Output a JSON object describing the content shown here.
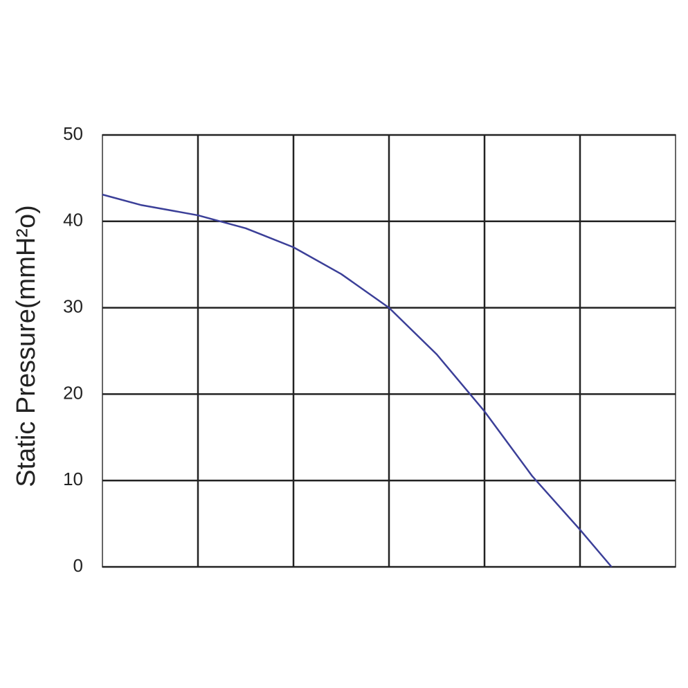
{
  "chart_data": {
    "type": "line",
    "y_label": "Static Pressure(mmH²o)",
    "x": [
      0,
      0.4,
      1,
      1.5,
      2,
      2.5,
      3,
      3.5,
      4,
      4.5,
      5,
      5.33
    ],
    "series": [
      {
        "name": "Static Pressure",
        "color": "#3b3f98",
        "values": [
          43.1,
          41.9,
          40.7,
          39.2,
          37.0,
          33.9,
          30.0,
          24.6,
          18.0,
          10.5,
          4.3,
          0
        ]
      }
    ],
    "xlim": [
      0,
      6
    ],
    "ylim": [
      0,
      50
    ],
    "yticks": [
      0,
      10,
      20,
      30,
      40,
      50
    ],
    "grid": true
  }
}
